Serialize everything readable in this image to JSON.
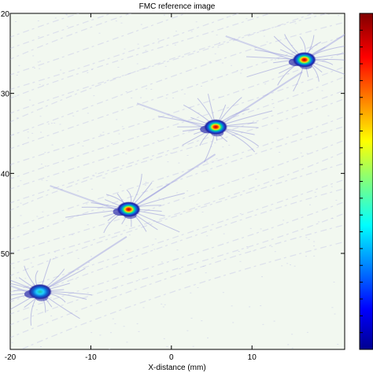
{
  "chart_data": {
    "type": "heatmap",
    "title": "FMC reference image",
    "xlabel": "X-distance (mm)",
    "ylabel": "",
    "xlim": [
      -20,
      21.5
    ],
    "ylim": [
      20,
      62
    ],
    "y_reversed": true,
    "x_ticks": [
      -20,
      -10,
      0,
      10
    ],
    "x_tick_labels": [
      "-20",
      "-10",
      "0",
      "10"
    ],
    "y_ticks": [
      20,
      30,
      40,
      50
    ],
    "y_tick_labels": [
      "20",
      "30",
      "40",
      "50"
    ],
    "colormap": "jet",
    "colorbar": true,
    "background_color": "#f2f8f0",
    "reflectors": [
      {
        "x": 16.5,
        "y": 25.8,
        "intensity": 1.0
      },
      {
        "x": 5.5,
        "y": 34.2,
        "intensity": 1.0
      },
      {
        "x": -5.3,
        "y": 44.5,
        "intensity": 1.0
      },
      {
        "x": -16.3,
        "y": 54.8,
        "intensity": 0.6
      }
    ]
  },
  "colors": {
    "artifact": "#b4b4e6",
    "spot_outer": "#2020c0",
    "spot_mid": "#00c8ff",
    "spot_inner": "#ffe000",
    "spot_core": "#e00000"
  }
}
